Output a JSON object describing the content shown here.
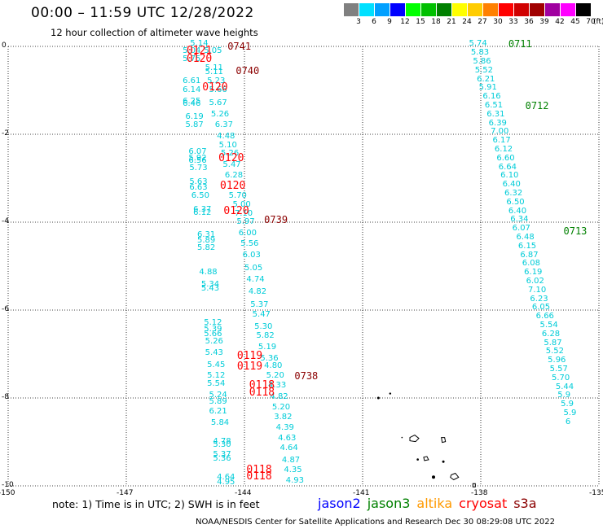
{
  "title": "00:00 – 11:59 UTC 12/28/2022",
  "subtitle": "12 hour collection of altimeter wave heights",
  "colorbar": {
    "unit_label": "(ft)",
    "levels": [
      {
        "label": "3",
        "color": "#808080"
      },
      {
        "label": "6",
        "color": "#00e0ff"
      },
      {
        "label": "9",
        "color": "#00a0ff"
      },
      {
        "label": "12",
        "color": "#0000ff"
      },
      {
        "label": "15",
        "color": "#00ff00"
      },
      {
        "label": "18",
        "color": "#00c000"
      },
      {
        "label": "21",
        "color": "#008000"
      },
      {
        "label": "24",
        "color": "#ffff00"
      },
      {
        "label": "27",
        "color": "#ffcc00"
      },
      {
        "label": "30",
        "color": "#ff8000"
      },
      {
        "label": "33",
        "color": "#ff0000"
      },
      {
        "label": "36",
        "color": "#d00000"
      },
      {
        "label": "39",
        "color": "#a00000"
      },
      {
        "label": "42",
        "color": "#a000a0"
      },
      {
        "label": "45",
        "color": "#ff00ff"
      },
      {
        "label": "70",
        "color": "#000000"
      }
    ]
  },
  "axes": {
    "lat_labels": [
      "0",
      "-2",
      "-4",
      "-6",
      "-8",
      "-10"
    ],
    "lon_labels": [
      "-150",
      "-147",
      "-144",
      "-141",
      "-138",
      "-135"
    ]
  },
  "note": "note: 1) Time is in UTC; 2) SWH is in feet",
  "satellites": [
    {
      "name": "jason2",
      "color": "#0000ff"
    },
    {
      "name": "jason3",
      "color": "#008000"
    },
    {
      "name": "altika",
      "color": "#ff9900"
    },
    {
      "name": "cryosat",
      "color": "#ff0000"
    },
    {
      "name": "s3a",
      "color": "#8b0000"
    }
  ],
  "footer": "NOAA/NESDIS Center for Satellite Applications and Research    Dec 30 08:29:08 UTC 2022",
  "time_labels": [
    {
      "text": "0741",
      "class": "dark",
      "lon": -144.43,
      "lat": 0.0
    },
    {
      "text": "0121",
      "class": "red",
      "lon": -145.47,
      "lat": -0.12
    },
    {
      "text": "0120",
      "class": "red",
      "lon": -145.47,
      "lat": -0.3
    },
    {
      "text": "0740",
      "class": "dark",
      "lon": -144.22,
      "lat": -0.55
    },
    {
      "text": "0120",
      "class": "red",
      "lon": -145.07,
      "lat": -0.95
    },
    {
      "text": "0120",
      "class": "red",
      "lon": -144.66,
      "lat": -2.55
    },
    {
      "text": "0120",
      "class": "red",
      "lon": -144.62,
      "lat": -3.18
    },
    {
      "text": "0120",
      "class": "red",
      "lon": -144.53,
      "lat": -3.75
    },
    {
      "text": "0739",
      "class": "dark",
      "lon": -143.5,
      "lat": -3.95
    },
    {
      "text": "0119",
      "class": "red",
      "lon": -144.19,
      "lat": -7.05
    },
    {
      "text": "0119",
      "class": "red",
      "lon": -144.19,
      "lat": -7.3
    },
    {
      "text": "0738",
      "class": "dark",
      "lon": -142.73,
      "lat": -7.5
    },
    {
      "text": "0118",
      "class": "red",
      "lon": -143.88,
      "lat": -7.73
    },
    {
      "text": "0118",
      "class": "red",
      "lon": -143.88,
      "lat": -7.88
    },
    {
      "text": "0118",
      "class": "red",
      "lon": -143.95,
      "lat": -9.65
    },
    {
      "text": "0118",
      "class": "red",
      "lon": -143.95,
      "lat": -9.8
    },
    {
      "text": "0711",
      "class": "green",
      "lon": -137.3,
      "lat": 0.05
    },
    {
      "text": "0712",
      "class": "green",
      "lon": -136.87,
      "lat": -1.35
    },
    {
      "text": "0713",
      "class": "green",
      "lon": -135.9,
      "lat": -4.2
    }
  ],
  "swh_labels": [
    {
      "text": "5.14",
      "lon": -145.38,
      "lat": 0.05
    },
    {
      "text": "5.04",
      "lon": -145.57,
      "lat": -0.12
    },
    {
      "text": "5.05",
      "lon": -145.03,
      "lat": -0.12
    },
    {
      "text": "5.75",
      "lon": -145.57,
      "lat": -0.3
    },
    {
      "text": "5.11",
      "lon": -145.0,
      "lat": -0.5
    },
    {
      "text": "5.11",
      "lon": -145.0,
      "lat": -0.6
    },
    {
      "text": "6.61",
      "lon": -145.57,
      "lat": -0.8
    },
    {
      "text": "5.23",
      "lon": -144.95,
      "lat": -0.8
    },
    {
      "text": "6.14",
      "lon": -145.57,
      "lat": -1.0
    },
    {
      "text": "5.66",
      "lon": -144.9,
      "lat": -1.0
    },
    {
      "text": "6.25",
      "lon": -145.57,
      "lat": -1.25
    },
    {
      "text": "6.46",
      "lon": -145.57,
      "lat": -1.32
    },
    {
      "text": "5.67",
      "lon": -144.9,
      "lat": -1.3
    },
    {
      "text": "5.26",
      "lon": -144.85,
      "lat": -1.55
    },
    {
      "text": "6.19",
      "lon": -145.5,
      "lat": -1.62
    },
    {
      "text": "5.87",
      "lon": -145.5,
      "lat": -1.8
    },
    {
      "text": "6.37",
      "lon": -144.75,
      "lat": -1.8
    },
    {
      "text": "4.48",
      "lon": -144.7,
      "lat": -2.05
    },
    {
      "text": "5.10",
      "lon": -144.65,
      "lat": -2.25
    },
    {
      "text": "6.07",
      "lon": -145.42,
      "lat": -2.4
    },
    {
      "text": "5.26",
      "lon": -144.6,
      "lat": -2.45
    },
    {
      "text": "5.92",
      "lon": -145.42,
      "lat": -2.55
    },
    {
      "text": "6.56",
      "lon": -145.42,
      "lat": -2.62
    },
    {
      "text": "5.47",
      "lon": -144.55,
      "lat": -2.7
    },
    {
      "text": "5.73",
      "lon": -145.4,
      "lat": -2.78
    },
    {
      "text": "6.28",
      "lon": -144.5,
      "lat": -2.95
    },
    {
      "text": "5.63",
      "lon": -145.4,
      "lat": -3.1
    },
    {
      "text": "6.63",
      "lon": -145.4,
      "lat": -3.22
    },
    {
      "text": "5.70",
      "lon": -144.4,
      "lat": -3.4
    },
    {
      "text": "6.50",
      "lon": -145.35,
      "lat": -3.4
    },
    {
      "text": "5.00",
      "lon": -144.3,
      "lat": -3.62
    },
    {
      "text": "6.12",
      "lon": -145.3,
      "lat": -3.8
    },
    {
      "text": "6.37",
      "lon": -145.3,
      "lat": -3.72
    },
    {
      "text": "7.10",
      "lon": -144.25,
      "lat": -3.82
    },
    {
      "text": "5.97",
      "lon": -144.2,
      "lat": -4.0
    },
    {
      "text": "6.00",
      "lon": -144.15,
      "lat": -4.25
    },
    {
      "text": "6.31",
      "lon": -145.2,
      "lat": -4.3
    },
    {
      "text": "5.89",
      "lon": -145.2,
      "lat": -4.42
    },
    {
      "text": "5.56",
      "lon": -144.1,
      "lat": -4.5
    },
    {
      "text": "5.82",
      "lon": -145.2,
      "lat": -4.6
    },
    {
      "text": "6.03",
      "lon": -144.05,
      "lat": -4.75
    },
    {
      "text": "5.05",
      "lon": -144.0,
      "lat": -5.05
    },
    {
      "text": "4.88",
      "lon": -145.15,
      "lat": -5.15
    },
    {
      "text": "4.74",
      "lon": -143.95,
      "lat": -5.32
    },
    {
      "text": "5.34",
      "lon": -145.1,
      "lat": -5.42
    },
    {
      "text": "5.43",
      "lon": -145.1,
      "lat": -5.52
    },
    {
      "text": "4.82",
      "lon": -143.9,
      "lat": -5.6
    },
    {
      "text": "5.37",
      "lon": -143.85,
      "lat": -5.88
    },
    {
      "text": "5.47",
      "lon": -143.8,
      "lat": -6.12
    },
    {
      "text": "5.12",
      "lon": -145.03,
      "lat": -6.3
    },
    {
      "text": "5.30",
      "lon": -143.75,
      "lat": -6.38
    },
    {
      "text": "5.39",
      "lon": -145.03,
      "lat": -6.45
    },
    {
      "text": "5.66",
      "lon": -145.03,
      "lat": -6.55
    },
    {
      "text": "5.82",
      "lon": -143.7,
      "lat": -6.6
    },
    {
      "text": "5.26",
      "lon": -145.0,
      "lat": -6.72
    },
    {
      "text": "5.19",
      "lon": -143.65,
      "lat": -6.85
    },
    {
      "text": "5.43",
      "lon": -145.0,
      "lat": -6.98
    },
    {
      "text": "5.36",
      "lon": -143.6,
      "lat": -7.12
    },
    {
      "text": "5.45",
      "lon": -144.95,
      "lat": -7.25
    },
    {
      "text": "4.80",
      "lon": -143.5,
      "lat": -7.28
    },
    {
      "text": "5.12",
      "lon": -144.95,
      "lat": -7.5
    },
    {
      "text": "5.20",
      "lon": -143.45,
      "lat": -7.5
    },
    {
      "text": "5.54",
      "lon": -144.95,
      "lat": -7.68
    },
    {
      "text": "4.33",
      "lon": -143.4,
      "lat": -7.72
    },
    {
      "text": "5.24",
      "lon": -144.9,
      "lat": -7.95
    },
    {
      "text": "4.82",
      "lon": -143.35,
      "lat": -7.98
    },
    {
      "text": "5.89",
      "lon": -144.9,
      "lat": -8.1
    },
    {
      "text": "5.20",
      "lon": -143.3,
      "lat": -8.22
    },
    {
      "text": "6.21",
      "lon": -144.9,
      "lat": -8.32
    },
    {
      "text": "3.82",
      "lon": -143.25,
      "lat": -8.45
    },
    {
      "text": "5.84",
      "lon": -144.85,
      "lat": -8.58
    },
    {
      "text": "4.39",
      "lon": -143.2,
      "lat": -8.68
    },
    {
      "text": "4.63",
      "lon": -143.15,
      "lat": -8.92
    },
    {
      "text": "4.78",
      "lon": -144.8,
      "lat": -9.0
    },
    {
      "text": "5.30",
      "lon": -144.8,
      "lat": -9.08
    },
    {
      "text": "4.64",
      "lon": -143.1,
      "lat": -9.15
    },
    {
      "text": "5.37",
      "lon": -144.8,
      "lat": -9.3
    },
    {
      "text": "5.36",
      "lon": -144.8,
      "lat": -9.38
    },
    {
      "text": "4.87",
      "lon": -143.05,
      "lat": -9.42
    },
    {
      "text": "4.35",
      "lon": -143.0,
      "lat": -9.65
    },
    {
      "text": "4.64",
      "lon": -144.7,
      "lat": -9.82
    },
    {
      "text": "4.95",
      "lon": -144.7,
      "lat": -9.92
    },
    {
      "text": "4.93",
      "lon": -142.95,
      "lat": -9.88
    },
    {
      "text": "5.74",
      "lon": -138.3,
      "lat": 0.05
    },
    {
      "text": "5.83",
      "lon": -138.25,
      "lat": -0.15
    },
    {
      "text": "5.86",
      "lon": -138.2,
      "lat": -0.35
    },
    {
      "text": "5.52",
      "lon": -138.15,
      "lat": -0.55
    },
    {
      "text": "6.21",
      "lon": -138.1,
      "lat": -0.75
    },
    {
      "text": "5.91",
      "lon": -138.05,
      "lat": -0.95
    },
    {
      "text": "6.16",
      "lon": -137.95,
      "lat": -1.15
    },
    {
      "text": "6.51",
      "lon": -137.9,
      "lat": -1.35
    },
    {
      "text": "6.31",
      "lon": -137.85,
      "lat": -1.55
    },
    {
      "text": "6.39",
      "lon": -137.8,
      "lat": -1.75
    },
    {
      "text": "7.00",
      "lon": -137.75,
      "lat": -1.95
    },
    {
      "text": "6.17",
      "lon": -137.7,
      "lat": -2.15
    },
    {
      "text": "6.12",
      "lon": -137.65,
      "lat": -2.35
    },
    {
      "text": "6.60",
      "lon": -137.6,
      "lat": -2.55
    },
    {
      "text": "6.64",
      "lon": -137.55,
      "lat": -2.75
    },
    {
      "text": "6.10",
      "lon": -137.5,
      "lat": -2.95
    },
    {
      "text": "6.40",
      "lon": -137.45,
      "lat": -3.15
    },
    {
      "text": "6.32",
      "lon": -137.4,
      "lat": -3.35
    },
    {
      "text": "6.50",
      "lon": -137.35,
      "lat": -3.55
    },
    {
      "text": "6.40",
      "lon": -137.3,
      "lat": -3.75
    },
    {
      "text": "6.34",
      "lon": -137.25,
      "lat": -3.95
    },
    {
      "text": "6.07",
      "lon": -137.2,
      "lat": -4.15
    },
    {
      "text": "6.48",
      "lon": -137.1,
      "lat": -4.35
    },
    {
      "text": "6.15",
      "lon": -137.05,
      "lat": -4.55
    },
    {
      "text": "6.87",
      "lon": -137.0,
      "lat": -4.75
    },
    {
      "text": "6.08",
      "lon": -136.95,
      "lat": -4.95
    },
    {
      "text": "6.19",
      "lon": -136.9,
      "lat": -5.15
    },
    {
      "text": "6.02",
      "lon": -136.85,
      "lat": -5.35
    },
    {
      "text": "7.10",
      "lon": -136.8,
      "lat": -5.55
    },
    {
      "text": "6.23",
      "lon": -136.75,
      "lat": -5.75
    },
    {
      "text": "6.05",
      "lon": -136.7,
      "lat": -5.95
    },
    {
      "text": "6.66",
      "lon": -136.6,
      "lat": -6.15
    },
    {
      "text": "5.54",
      "lon": -136.5,
      "lat": -6.35
    },
    {
      "text": "6.28",
      "lon": -136.45,
      "lat": -6.55
    },
    {
      "text": "5.87",
      "lon": -136.4,
      "lat": -6.75
    },
    {
      "text": "5.52",
      "lon": -136.35,
      "lat": -6.95
    },
    {
      "text": "5.96",
      "lon": -136.3,
      "lat": -7.15
    },
    {
      "text": "5.57",
      "lon": -136.25,
      "lat": -7.35
    },
    {
      "text": "5.70",
      "lon": -136.2,
      "lat": -7.55
    },
    {
      "text": "5.44",
      "lon": -136.1,
      "lat": -7.75
    },
    {
      "text": "5.9",
      "lon": -136.05,
      "lat": -7.95
    },
    {
      "text": "5.9",
      "lon": -135.97,
      "lat": -8.15
    },
    {
      "text": "5.9",
      "lon": -135.9,
      "lat": -8.35
    },
    {
      "text": "6",
      "lon": -135.85,
      "lat": -8.55
    }
  ]
}
